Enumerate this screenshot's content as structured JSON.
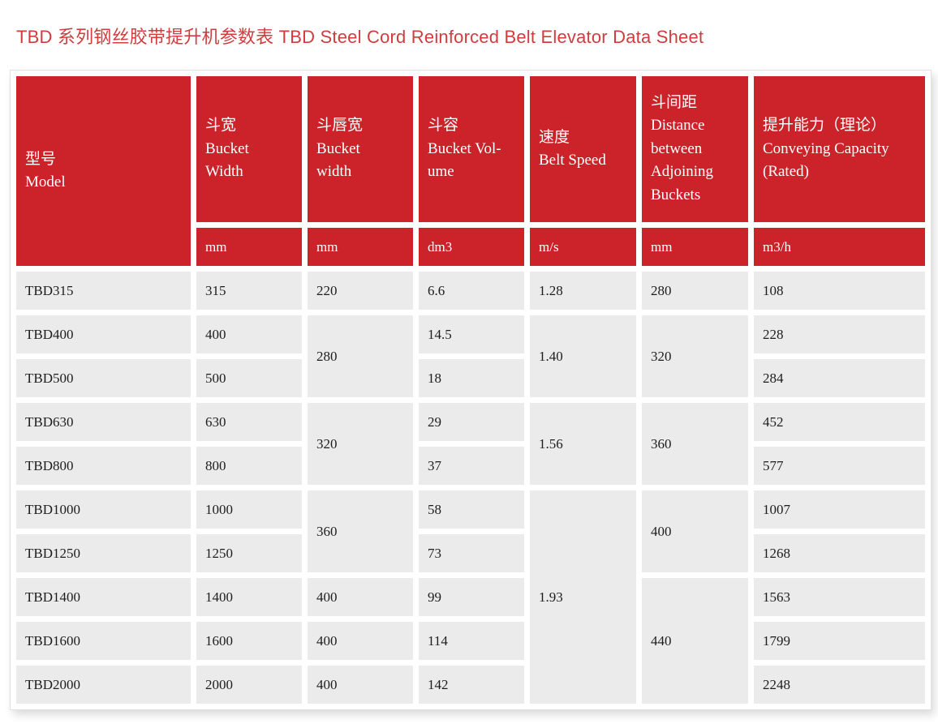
{
  "page": {
    "title": "TBD 系列钢丝胶带提升机参数表 TBD Steel Cord Reinforced Belt Elevator Data Sheet"
  },
  "colors": {
    "brand_red": "#cc2229",
    "title_red": "#d13c3f",
    "row_gray": "#ebebeb",
    "border_gray": "#e0e0e0",
    "text_dark": "#1d1d1d"
  },
  "table": {
    "columns": [
      {
        "key": "model",
        "label": "型号\nModel",
        "unit": ""
      },
      {
        "key": "bucket-width",
        "label": "斗宽\nBucket\nWidth",
        "unit": "mm"
      },
      {
        "key": "bucket-lip-width",
        "label": "斗唇宽\nBucket\nwidth",
        "unit": "mm"
      },
      {
        "key": "bucket-volume",
        "label": "斗容\nBucket Vol-\nume",
        "unit": "dm3"
      },
      {
        "key": "belt-speed",
        "label": "速度\nBelt Speed",
        "unit": "m/s"
      },
      {
        "key": "bucket-distance",
        "label": "斗间距\nDistance\nbetween\nAdjoining\nBuckets",
        "unit": "mm"
      },
      {
        "key": "capacity",
        "label": "提升能力（理论）\nConveying Capacity\n(Rated)",
        "unit": "m3/h"
      }
    ],
    "rows": [
      {
        "id": "tbd315",
        "cells": [
          {
            "v": "TBD315"
          },
          {
            "v": "315"
          },
          {
            "v": "220"
          },
          {
            "v": "6.6"
          },
          {
            "v": "1.28"
          },
          {
            "v": "280"
          },
          {
            "v": "108"
          }
        ]
      },
      {
        "id": "tbd400",
        "cells": [
          {
            "v": "TBD400"
          },
          {
            "v": "400"
          },
          {
            "v": "280",
            "rs": 2
          },
          {
            "v": "14.5"
          },
          {
            "v": "1.40",
            "rs": 2
          },
          {
            "v": "320",
            "rs": 2
          },
          {
            "v": "228"
          }
        ]
      },
      {
        "id": "tbd500",
        "cells": [
          {
            "v": "TBD500"
          },
          {
            "v": "500"
          },
          null,
          {
            "v": "18"
          },
          null,
          null,
          {
            "v": "284"
          }
        ]
      },
      {
        "id": "tbd630",
        "cells": [
          {
            "v": "TBD630"
          },
          {
            "v": "630"
          },
          {
            "v": "320",
            "rs": 2
          },
          {
            "v": "29"
          },
          {
            "v": "1.56",
            "rs": 2
          },
          {
            "v": "360",
            "rs": 2
          },
          {
            "v": "452"
          }
        ]
      },
      {
        "id": "tbd800",
        "cells": [
          {
            "v": "TBD800"
          },
          {
            "v": "800"
          },
          null,
          {
            "v": "37"
          },
          null,
          null,
          {
            "v": "577"
          }
        ]
      },
      {
        "id": "tbd1000",
        "cells": [
          {
            "v": "TBD1000"
          },
          {
            "v": "1000"
          },
          {
            "v": "360",
            "rs": 2
          },
          {
            "v": "58"
          },
          {
            "v": "1.93",
            "rs": 5
          },
          {
            "v": "400",
            "rs": 2
          },
          {
            "v": "1007"
          }
        ]
      },
      {
        "id": "tbd1250",
        "cells": [
          {
            "v": "TBD1250"
          },
          {
            "v": "1250"
          },
          null,
          {
            "v": "73"
          },
          null,
          null,
          {
            "v": "1268"
          }
        ]
      },
      {
        "id": "tbd1400",
        "cells": [
          {
            "v": "TBD1400"
          },
          {
            "v": "1400"
          },
          {
            "v": "400"
          },
          {
            "v": "99"
          },
          null,
          {
            "v": "440",
            "rs": 3
          },
          {
            "v": "1563"
          }
        ]
      },
      {
        "id": "tbd1600",
        "cells": [
          {
            "v": "TBD1600"
          },
          {
            "v": "1600"
          },
          {
            "v": "400"
          },
          {
            "v": "114"
          },
          null,
          null,
          {
            "v": "1799"
          }
        ]
      },
      {
        "id": "tbd2000",
        "cells": [
          {
            "v": "TBD2000"
          },
          {
            "v": "2000"
          },
          {
            "v": "400"
          },
          {
            "v": "142"
          },
          null,
          null,
          {
            "v": "2248"
          }
        ]
      }
    ]
  }
}
